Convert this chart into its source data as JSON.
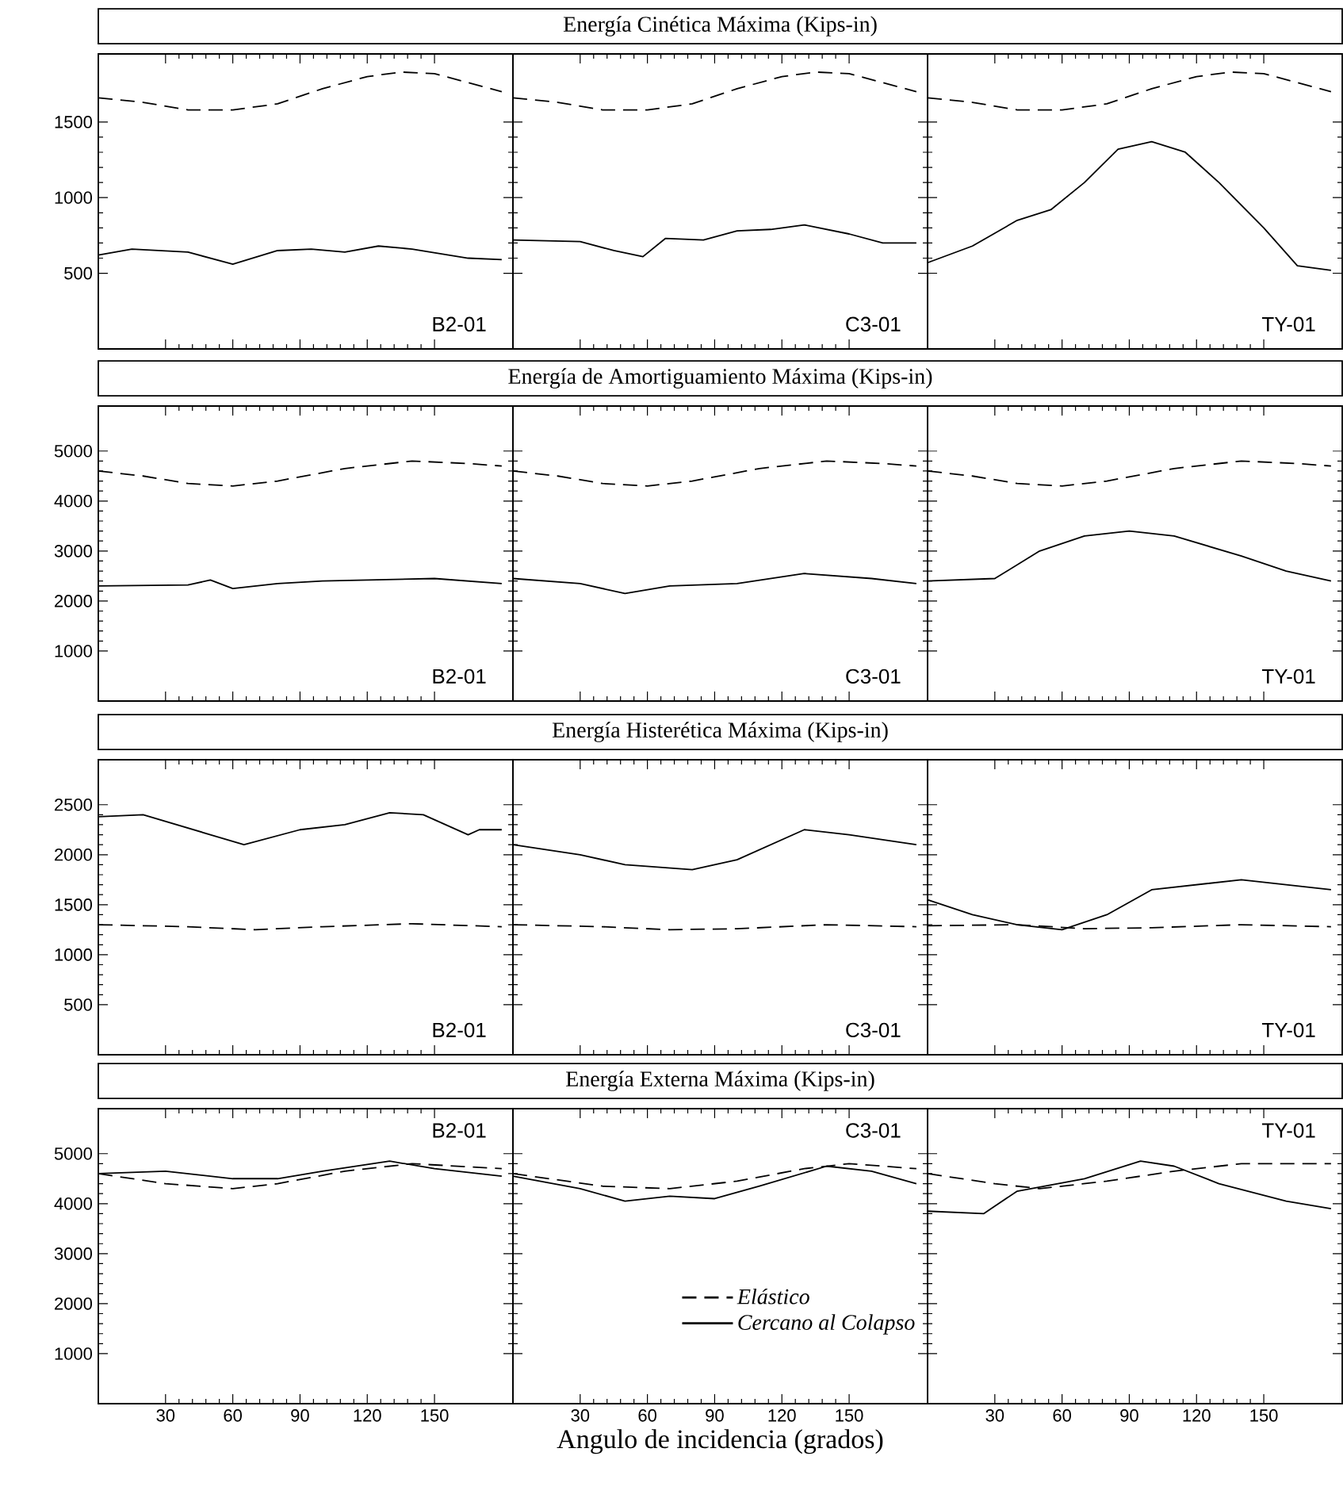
{
  "chart_data": [
    {
      "type": "line",
      "annotations": [
        "B2-01"
      ],
      "xlim": [
        0,
        185
      ],
      "ylim": [
        0,
        1950
      ],
      "xticks": [
        30,
        60,
        90,
        120,
        150
      ],
      "yticks": [
        500,
        1000,
        1500
      ],
      "tick_labels": "y",
      "series": [
        {
          "color": "#000000",
          "line_style": "dashed",
          "x": [
            0,
            20,
            40,
            60,
            80,
            100,
            120,
            135,
            150,
            165,
            180
          ],
          "values": [
            1660,
            1630,
            1580,
            1580,
            1620,
            1720,
            1800,
            1830,
            1820,
            1760,
            1700
          ]
        },
        {
          "color": "#000000",
          "line_style": "solid",
          "x": [
            0,
            15,
            40,
            60,
            80,
            95,
            110,
            125,
            140,
            165,
            180
          ],
          "values": [
            620,
            660,
            640,
            560,
            650,
            660,
            640,
            680,
            660,
            600,
            590
          ]
        }
      ]
    },
    {
      "type": "line",
      "title": "Energía Cinética Máxima (Kips-in)",
      "annotations": [
        "C3-01"
      ],
      "xlim": [
        0,
        185
      ],
      "ylim": [
        0,
        1950
      ],
      "xticks": [
        30,
        60,
        90,
        120,
        150
      ],
      "yticks": [
        500,
        1000,
        1500
      ],
      "tick_labels": false,
      "series": [
        {
          "color": "#000000",
          "line_style": "dashed",
          "x": [
            0,
            20,
            40,
            60,
            80,
            100,
            120,
            135,
            150,
            165,
            180
          ],
          "values": [
            1660,
            1630,
            1580,
            1580,
            1620,
            1720,
            1800,
            1830,
            1820,
            1760,
            1700
          ]
        },
        {
          "color": "#000000",
          "line_style": "solid",
          "x": [
            0,
            30,
            45,
            58,
            68,
            85,
            100,
            115,
            130,
            150,
            165,
            180
          ],
          "values": [
            720,
            710,
            650,
            610,
            730,
            720,
            780,
            790,
            820,
            760,
            700,
            700
          ]
        }
      ]
    },
    {
      "type": "line",
      "annotations": [
        "TY-01"
      ],
      "xlim": [
        0,
        185
      ],
      "ylim": [
        0,
        1950
      ],
      "xticks": [
        30,
        60,
        90,
        120,
        150
      ],
      "yticks": [
        500,
        1000,
        1500
      ],
      "tick_labels": false,
      "series": [
        {
          "color": "#000000",
          "line_style": "dashed",
          "x": [
            0,
            20,
            40,
            60,
            80,
            100,
            120,
            135,
            150,
            165,
            180
          ],
          "values": [
            1660,
            1630,
            1580,
            1580,
            1620,
            1720,
            1800,
            1830,
            1820,
            1760,
            1700
          ]
        },
        {
          "color": "#000000",
          "line_style": "solid",
          "x": [
            0,
            20,
            40,
            55,
            70,
            85,
            100,
            115,
            130,
            150,
            165,
            180
          ],
          "values": [
            570,
            680,
            850,
            920,
            1100,
            1320,
            1370,
            1300,
            1100,
            800,
            550,
            520
          ]
        }
      ]
    },
    {
      "type": "line",
      "annotations": [
        "B2-01"
      ],
      "xlim": [
        0,
        185
      ],
      "ylim": [
        0,
        5900
      ],
      "xticks": [
        30,
        60,
        90,
        120,
        150
      ],
      "yticks": [
        1000,
        2000,
        3000,
        4000,
        5000
      ],
      "tick_labels": "y",
      "series": [
        {
          "color": "#000000",
          "line_style": "dashed",
          "x": [
            0,
            20,
            40,
            60,
            80,
            110,
            140,
            165,
            180
          ],
          "values": [
            4600,
            4500,
            4350,
            4300,
            4400,
            4650,
            4800,
            4750,
            4700
          ]
        },
        {
          "color": "#000000",
          "line_style": "solid",
          "x": [
            0,
            40,
            50,
            60,
            80,
            100,
            150,
            180
          ],
          "values": [
            2300,
            2320,
            2420,
            2250,
            2350,
            2400,
            2450,
            2350
          ]
        }
      ]
    },
    {
      "type": "line",
      "title": "Energía de Amortiguamiento Máxima (Kips-in)",
      "annotations": [
        "C3-01"
      ],
      "xlim": [
        0,
        185
      ],
      "ylim": [
        0,
        5900
      ],
      "xticks": [
        30,
        60,
        90,
        120,
        150
      ],
      "yticks": [
        1000,
        2000,
        3000,
        4000,
        5000
      ],
      "tick_labels": false,
      "series": [
        {
          "color": "#000000",
          "line_style": "dashed",
          "x": [
            0,
            20,
            40,
            60,
            80,
            110,
            140,
            165,
            180
          ],
          "values": [
            4600,
            4500,
            4350,
            4300,
            4400,
            4650,
            4800,
            4750,
            4700
          ]
        },
        {
          "color": "#000000",
          "line_style": "solid",
          "x": [
            0,
            30,
            50,
            70,
            100,
            130,
            160,
            180
          ],
          "values": [
            2450,
            2350,
            2150,
            2300,
            2350,
            2550,
            2450,
            2350
          ]
        }
      ]
    },
    {
      "type": "line",
      "annotations": [
        "TY-01"
      ],
      "xlim": [
        0,
        185
      ],
      "ylim": [
        0,
        5900
      ],
      "xticks": [
        30,
        60,
        90,
        120,
        150
      ],
      "yticks": [
        1000,
        2000,
        3000,
        4000,
        5000
      ],
      "tick_labels": false,
      "series": [
        {
          "color": "#000000",
          "line_style": "dashed",
          "x": [
            0,
            20,
            40,
            60,
            80,
            110,
            140,
            165,
            180
          ],
          "values": [
            4600,
            4500,
            4350,
            4300,
            4400,
            4650,
            4800,
            4750,
            4700
          ]
        },
        {
          "color": "#000000",
          "line_style": "solid",
          "x": [
            0,
            30,
            50,
            70,
            90,
            110,
            140,
            160,
            180
          ],
          "values": [
            2400,
            2450,
            3000,
            3300,
            3400,
            3300,
            2900,
            2600,
            2400
          ]
        }
      ]
    },
    {
      "type": "line",
      "annotations": [
        "B2-01"
      ],
      "xlim": [
        0,
        185
      ],
      "ylim": [
        0,
        2950
      ],
      "xticks": [
        30,
        60,
        90,
        120,
        150
      ],
      "yticks": [
        500,
        1000,
        1500,
        2000,
        2500
      ],
      "tick_labels": "y",
      "series": [
        {
          "color": "#000000",
          "line_style": "dashed",
          "x": [
            0,
            40,
            70,
            100,
            140,
            180
          ],
          "values": [
            1300,
            1280,
            1250,
            1280,
            1310,
            1280
          ]
        },
        {
          "color": "#000000",
          "line_style": "solid",
          "x": [
            0,
            20,
            50,
            65,
            90,
            110,
            130,
            145,
            165,
            170,
            180
          ],
          "values": [
            2380,
            2400,
            2200,
            2100,
            2250,
            2300,
            2420,
            2400,
            2200,
            2250,
            2250
          ]
        }
      ]
    },
    {
      "type": "line",
      "title": "Energía Histerética Máxima (Kips-in)",
      "annotations": [
        "C3-01"
      ],
      "xlim": [
        0,
        185
      ],
      "ylim": [
        0,
        2950
      ],
      "xticks": [
        30,
        60,
        90,
        120,
        150
      ],
      "yticks": [
        500,
        1000,
        1500,
        2000,
        2500
      ],
      "tick_labels": false,
      "series": [
        {
          "color": "#000000",
          "line_style": "dashed",
          "x": [
            0,
            40,
            70,
            100,
            140,
            180
          ],
          "values": [
            1300,
            1280,
            1250,
            1260,
            1300,
            1280
          ]
        },
        {
          "color": "#000000",
          "line_style": "solid",
          "x": [
            0,
            30,
            50,
            80,
            100,
            130,
            150,
            180
          ],
          "values": [
            2100,
            2000,
            1900,
            1850,
            1950,
            2250,
            2200,
            2100
          ]
        }
      ]
    },
    {
      "type": "line",
      "annotations": [
        "TY-01"
      ],
      "xlim": [
        0,
        185
      ],
      "ylim": [
        0,
        2950
      ],
      "xticks": [
        30,
        60,
        90,
        120,
        150
      ],
      "yticks": [
        500,
        1000,
        1500,
        2000,
        2500
      ],
      "tick_labels": false,
      "series": [
        {
          "color": "#000000",
          "line_style": "dashed",
          "x": [
            0,
            40,
            70,
            100,
            140,
            180
          ],
          "values": [
            1290,
            1300,
            1260,
            1270,
            1300,
            1280
          ]
        },
        {
          "color": "#000000",
          "line_style": "solid",
          "x": [
            0,
            20,
            40,
            60,
            80,
            100,
            120,
            140,
            160,
            180
          ],
          "values": [
            1550,
            1400,
            1300,
            1250,
            1400,
            1650,
            1700,
            1750,
            1700,
            1650
          ]
        }
      ]
    },
    {
      "type": "line",
      "annotations": [
        "B2-01"
      ],
      "xlim": [
        0,
        185
      ],
      "ylim": [
        0,
        5900
      ],
      "xticks": [
        30,
        60,
        90,
        120,
        150
      ],
      "yticks": [
        1000,
        2000,
        3000,
        4000,
        5000
      ],
      "series": [
        {
          "color": "#000000",
          "line_style": "dashed",
          "x": [
            0,
            30,
            60,
            80,
            110,
            140,
            180
          ],
          "values": [
            4600,
            4400,
            4300,
            4400,
            4650,
            4800,
            4700
          ]
        },
        {
          "color": "#000000",
          "line_style": "solid",
          "x": [
            0,
            30,
            60,
            80,
            100,
            130,
            150,
            180
          ],
          "values": [
            4600,
            4650,
            4500,
            4500,
            4650,
            4850,
            4700,
            4550
          ]
        }
      ]
    },
    {
      "type": "line",
      "title": "Energía Externa Máxima (Kips-in)",
      "annotations": [
        "C3-01"
      ],
      "xlabel": "Angulo de incidencia (grados)",
      "legend": "bottom right",
      "xlim": [
        0,
        185
      ],
      "ylim": [
        0,
        5900
      ],
      "xticks": [
        30,
        60,
        90,
        120,
        150
      ],
      "yticks": [
        1000,
        2000,
        3000,
        4000,
        5000
      ],
      "tick_labels": "x",
      "series": [
        {
          "name": "*Elástico*",
          "color": "#000000",
          "line_style": "dashed",
          "x": [
            0,
            40,
            70,
            100,
            130,
            150,
            180
          ],
          "values": [
            4600,
            4350,
            4300,
            4450,
            4700,
            4800,
            4700
          ]
        },
        {
          "name": "*Cercano al Colapso*",
          "color": "#000000",
          "line_style": "solid",
          "x": [
            0,
            30,
            50,
            70,
            90,
            110,
            140,
            160,
            180
          ],
          "values": [
            4550,
            4300,
            4050,
            4150,
            4100,
            4350,
            4750,
            4650,
            4400
          ]
        }
      ]
    },
    {
      "type": "line",
      "annotations": [
        "TY-01"
      ],
      "xlim": [
        0,
        185
      ],
      "ylim": [
        0,
        5900
      ],
      "xticks": [
        30,
        60,
        90,
        120,
        150
      ],
      "yticks": [
        1000,
        2000,
        3000,
        4000,
        5000
      ],
      "tick_labels": "x",
      "series": [
        {
          "color": "#000000",
          "line_style": "dashed",
          "x": [
            0,
            30,
            50,
            80,
            110,
            140,
            180
          ],
          "values": [
            4600,
            4400,
            4300,
            4450,
            4650,
            4800,
            4800
          ]
        },
        {
          "color": "#000000",
          "line_style": "solid",
          "x": [
            0,
            25,
            40,
            70,
            95,
            110,
            130,
            160,
            180
          ],
          "values": [
            3850,
            3800,
            4250,
            4500,
            4850,
            4750,
            4400,
            4050,
            3900
          ]
        }
      ]
    }
  ]
}
